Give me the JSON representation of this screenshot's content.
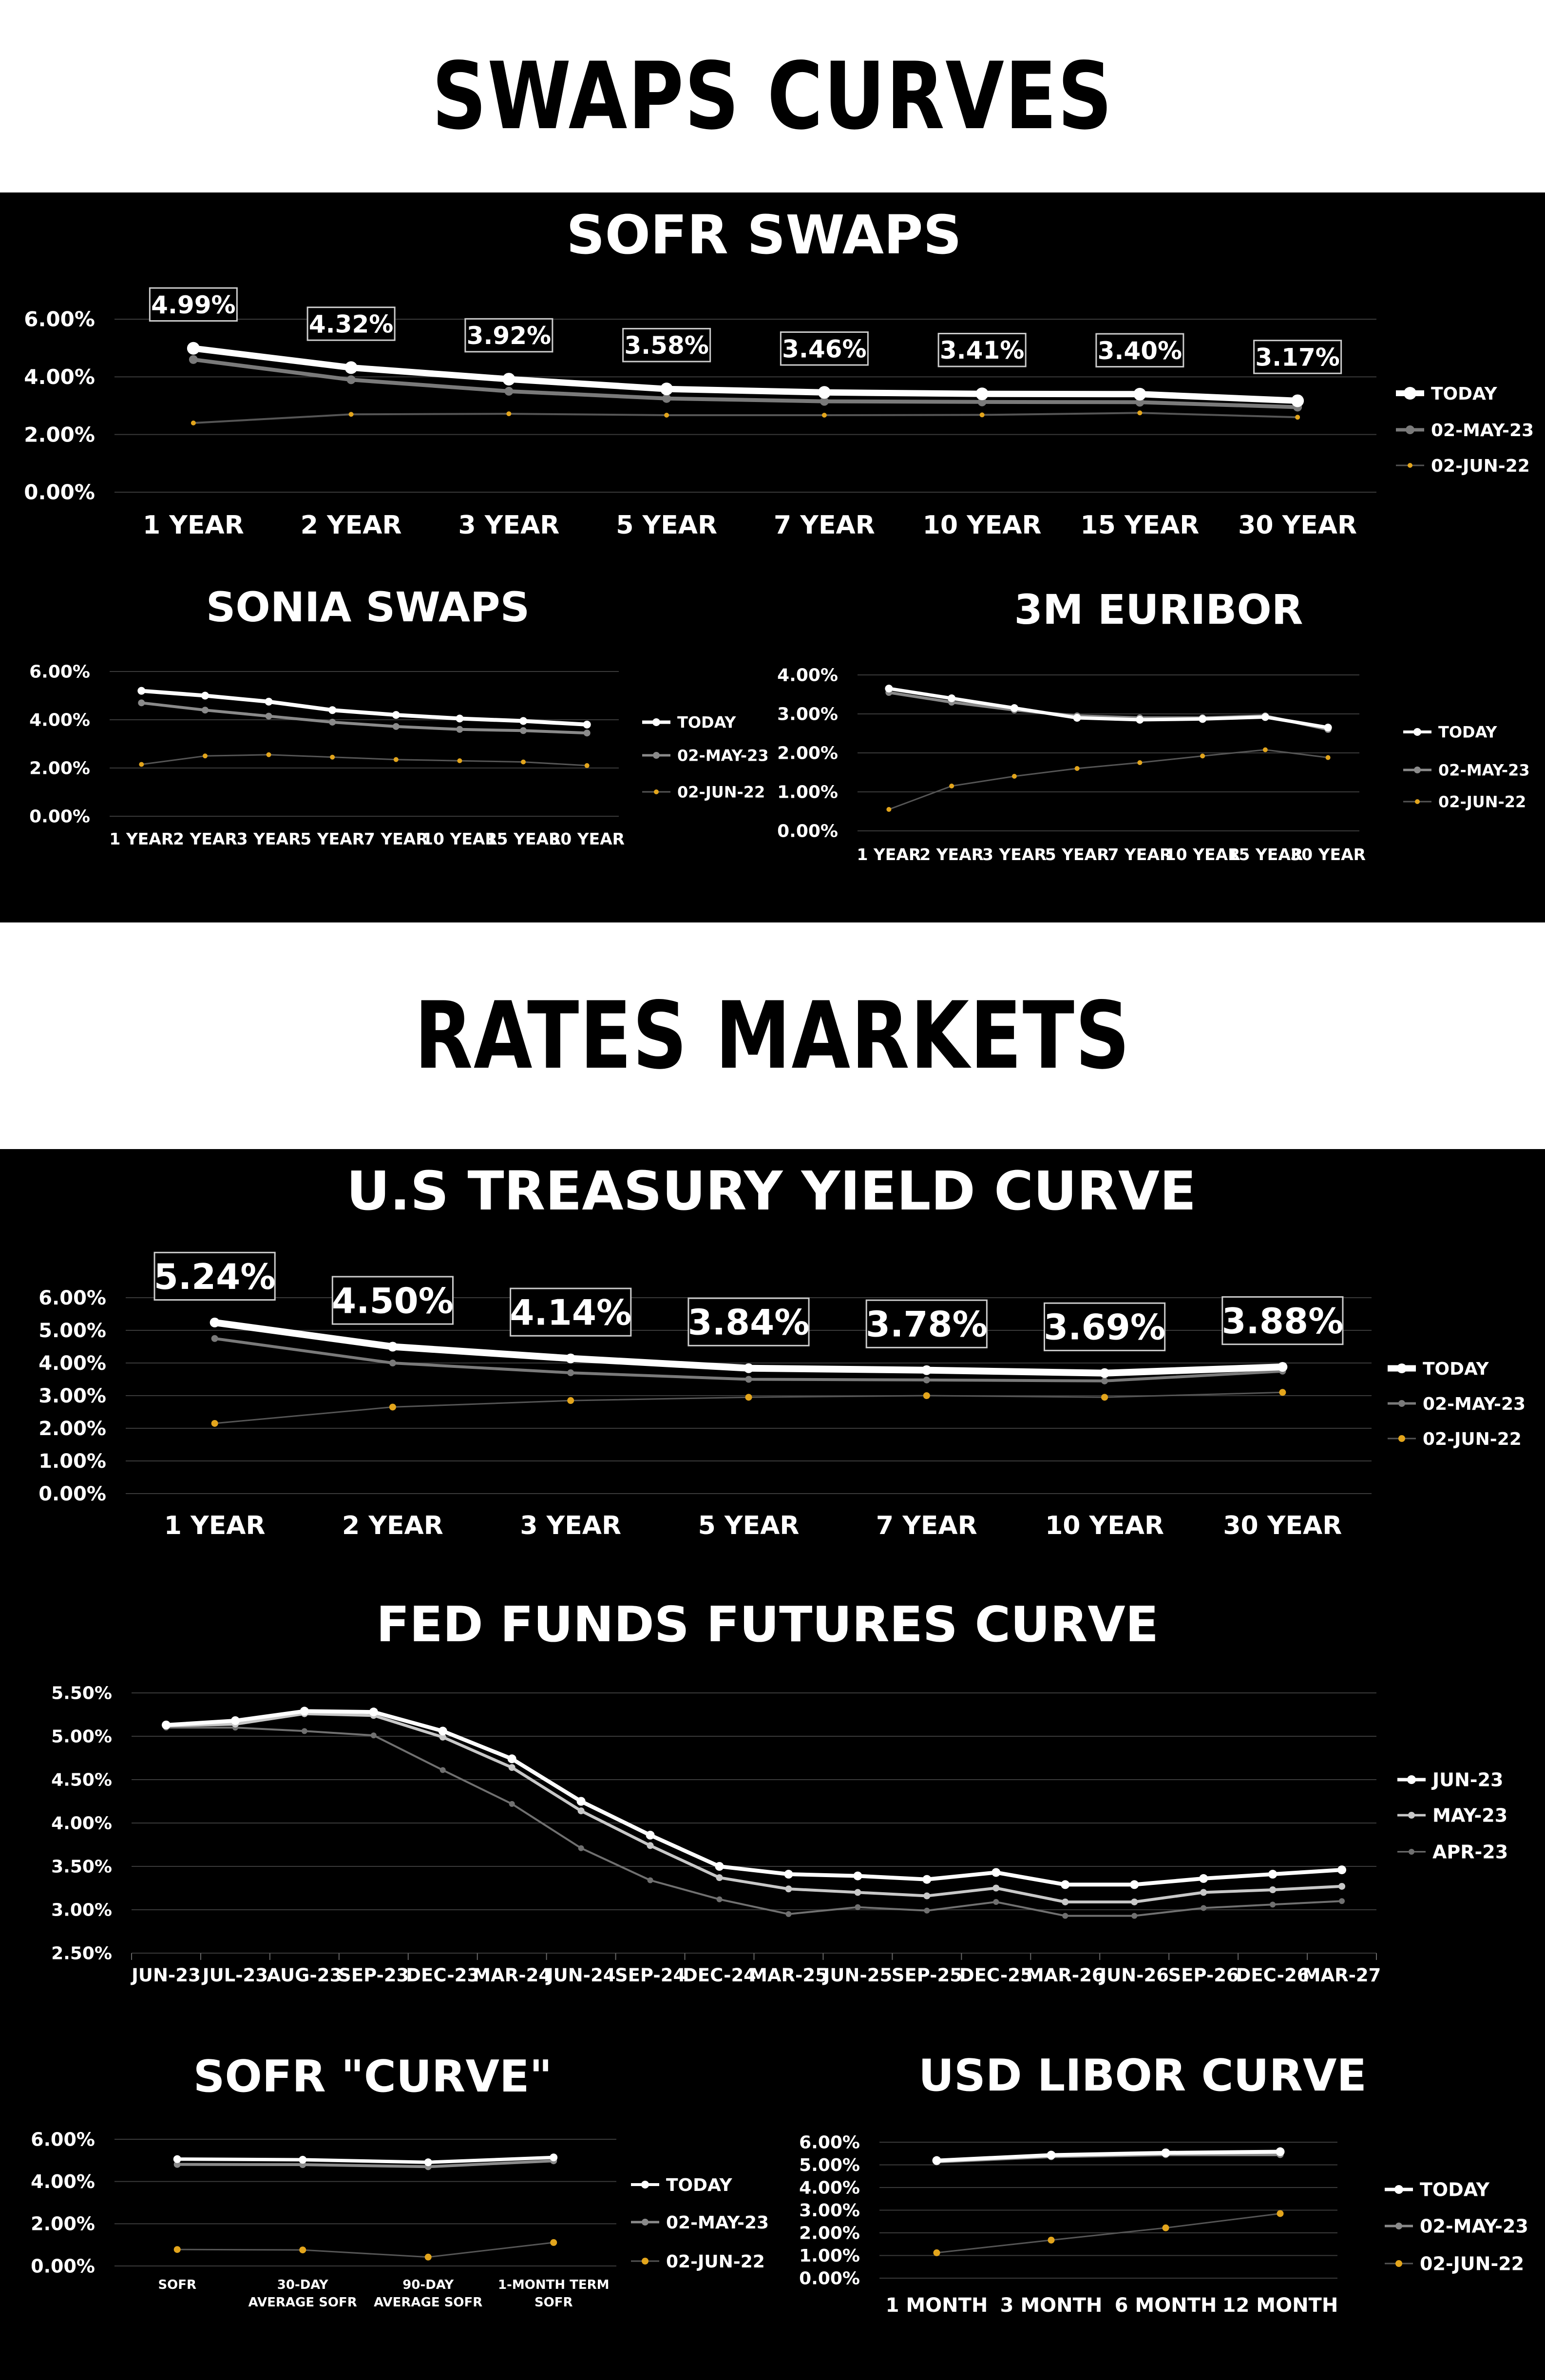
{
  "sections": {
    "swaps_title": "SWAPS CURVES",
    "rates_title": "RATES MARKETS"
  },
  "chart_data": [
    {
      "id": "sofr_swaps",
      "type": "line",
      "title": "SOFR SWAPS",
      "categories": [
        "1 YEAR",
        "2 YEAR",
        "3 YEAR",
        "5 YEAR",
        "7 YEAR",
        "10 YEAR",
        "15 YEAR",
        "30 YEAR"
      ],
      "yticks": [
        "0.00%",
        "2.00%",
        "4.00%",
        "6.00%"
      ],
      "ylim": [
        0,
        6
      ],
      "grid": true,
      "legend": "right",
      "data_labels": [
        "4.99%",
        "4.32%",
        "3.92%",
        "3.58%",
        "3.46%",
        "3.41%",
        "3.40%",
        "3.17%"
      ],
      "series": [
        {
          "name": "TODAY",
          "color": "#ffffff",
          "values": [
            4.99,
            4.32,
            3.92,
            3.58,
            3.46,
            3.41,
            3.4,
            3.17
          ]
        },
        {
          "name": "02-MAY-23",
          "color": "#7a7a7a",
          "values": [
            4.6,
            3.9,
            3.5,
            3.25,
            3.15,
            3.13,
            3.12,
            2.95
          ]
        },
        {
          "name": "02-JUN-22",
          "color": "#555555",
          "marker": "#e3a51c",
          "values": [
            2.4,
            2.7,
            2.72,
            2.67,
            2.67,
            2.68,
            2.75,
            2.6
          ]
        }
      ]
    },
    {
      "id": "sonia_swaps",
      "type": "line",
      "title": "SONIA SWAPS",
      "categories": [
        "1 YEAR",
        "2 YEAR",
        "3 YEAR",
        "5 YEAR",
        "7 YEAR",
        "10 YEAR",
        "15 YEAR",
        "30 YEAR"
      ],
      "yticks": [
        "0.00%",
        "2.00%",
        "4.00%",
        "6.00%"
      ],
      "ylim": [
        0,
        6
      ],
      "grid": true,
      "legend": "right",
      "series": [
        {
          "name": "TODAY",
          "color": "#ffffff",
          "values": [
            5.2,
            5.0,
            4.75,
            4.4,
            4.2,
            4.05,
            3.95,
            3.8
          ]
        },
        {
          "name": "02-MAY-23",
          "color": "#8a8a8a",
          "values": [
            4.7,
            4.4,
            4.15,
            3.9,
            3.72,
            3.6,
            3.55,
            3.45
          ]
        },
        {
          "name": "02-JUN-22",
          "color": "#555555",
          "marker": "#e3a51c",
          "values": [
            2.15,
            2.5,
            2.55,
            2.45,
            2.35,
            2.3,
            2.25,
            2.1
          ]
        }
      ]
    },
    {
      "id": "euribor_3m",
      "type": "line",
      "title": "3M EURIBOR",
      "categories": [
        "1 YEAR",
        "2 YEAR",
        "3 YEAR",
        "5 YEAR",
        "7 YEAR",
        "10 YEAR",
        "15 YEAR",
        "30 YEAR"
      ],
      "yticks": [
        "0.00%",
        "1.00%",
        "2.00%",
        "3.00%",
        "4.00%"
      ],
      "ylim": [
        0,
        4
      ],
      "grid": true,
      "legend": "right",
      "series": [
        {
          "name": "TODAY",
          "color": "#ffffff",
          "values": [
            3.65,
            3.4,
            3.15,
            2.9,
            2.85,
            2.87,
            2.92,
            2.65
          ]
        },
        {
          "name": "02-MAY-23",
          "color": "#8a8a8a",
          "values": [
            3.55,
            3.3,
            3.1,
            2.95,
            2.9,
            2.9,
            2.95,
            2.6
          ]
        },
        {
          "name": "02-JUN-22",
          "color": "#555555",
          "marker": "#e3a51c",
          "values": [
            0.55,
            1.15,
            1.4,
            1.6,
            1.75,
            1.92,
            2.08,
            1.88
          ]
        }
      ]
    },
    {
      "id": "ust_yield",
      "type": "line",
      "title": "U.S TREASURY YIELD CURVE",
      "categories": [
        "1 YEAR",
        "2 YEAR",
        "3 YEAR",
        "5 YEAR",
        "7 YEAR",
        "10 YEAR",
        "30 YEAR"
      ],
      "yticks": [
        "0.00%",
        "1.00%",
        "2.00%",
        "3.00%",
        "4.00%",
        "5.00%",
        "6.00%"
      ],
      "ylim": [
        0,
        6
      ],
      "grid": true,
      "legend": "right",
      "data_labels": [
        "5.24%",
        "4.50%",
        "4.14%",
        "3.84%",
        "3.78%",
        "3.69%",
        "3.88%"
      ],
      "series": [
        {
          "name": "TODAY",
          "color": "#ffffff",
          "values": [
            5.24,
            4.5,
            4.14,
            3.84,
            3.78,
            3.69,
            3.88
          ]
        },
        {
          "name": "02-MAY-23",
          "color": "#7a7a7a",
          "values": [
            4.75,
            4.0,
            3.7,
            3.5,
            3.48,
            3.45,
            3.75
          ]
        },
        {
          "name": "02-JUN-22",
          "color": "#555555",
          "marker": "#e3a51c",
          "values": [
            2.15,
            2.65,
            2.85,
            2.95,
            3.0,
            2.95,
            3.1
          ]
        }
      ]
    },
    {
      "id": "fed_funds",
      "type": "line",
      "title": "FED FUNDS FUTURES CURVE",
      "categories": [
        "JUN-23",
        "JUL-23",
        "AUG-23",
        "SEP-23",
        "DEC-23",
        "MAR-24",
        "JUN-24",
        "SEP-24",
        "DEC-24",
        "MAR-25",
        "JUN-25",
        "SEP-25",
        "DEC-25",
        "MAR-26",
        "JUN-26",
        "SEP-26",
        "DEC-26",
        "MAR-27"
      ],
      "yticks": [
        "2.50%",
        "3.00%",
        "3.50%",
        "4.00%",
        "4.50%",
        "5.00%",
        "5.50%"
      ],
      "ylim": [
        2.5,
        5.5
      ],
      "grid": true,
      "legend": "right",
      "series": [
        {
          "name": "JUN-23",
          "color": "#ffffff",
          "values": [
            5.13,
            5.18,
            5.29,
            5.28,
            5.06,
            4.74,
            4.25,
            3.86,
            3.5,
            3.41,
            3.39,
            3.35,
            3.43,
            3.29,
            3.29,
            3.36,
            3.41,
            3.46
          ]
        },
        {
          "name": "MAY-23",
          "color": "#c8c8c8",
          "values": [
            5.12,
            5.14,
            5.26,
            5.24,
            4.99,
            4.64,
            4.14,
            3.74,
            3.37,
            3.24,
            3.2,
            3.16,
            3.25,
            3.09,
            3.09,
            3.2,
            3.23,
            3.27
          ]
        },
        {
          "name": "APR-23",
          "color": "#707070",
          "values": [
            5.1,
            5.1,
            5.06,
            5.01,
            4.61,
            4.22,
            3.71,
            3.34,
            3.12,
            2.95,
            3.03,
            2.99,
            3.09,
            2.93,
            2.93,
            3.02,
            3.06,
            3.1
          ]
        }
      ]
    },
    {
      "id": "sofr_curve",
      "type": "line",
      "title": "SOFR \"CURVE\"",
      "categories": [
        "SOFR",
        "30-DAY AVERAGE SOFR",
        "90-DAY AVERAGE SOFR",
        "1-MONTH TERM SOFR"
      ],
      "yticks": [
        "0.00%",
        "2.00%",
        "4.00%",
        "6.00%"
      ],
      "ylim": [
        0,
        6
      ],
      "grid": true,
      "legend": "right",
      "series": [
        {
          "name": "TODAY",
          "color": "#ffffff",
          "values": [
            5.06,
            5.03,
            4.91,
            5.14
          ]
        },
        {
          "name": "02-MAY-23",
          "color": "#8a8a8a",
          "values": [
            4.81,
            4.8,
            4.7,
            4.98
          ]
        },
        {
          "name": "02-JUN-22",
          "color": "#555555",
          "marker": "#e3a51c",
          "values": [
            0.78,
            0.76,
            0.42,
            1.11
          ]
        }
      ]
    },
    {
      "id": "usd_libor",
      "type": "line",
      "title": "USD LIBOR CURVE",
      "categories": [
        "1 MONTH",
        "3 MONTH",
        "6 MONTH",
        "12 MONTH"
      ],
      "yticks": [
        "0.00%",
        "1.00%",
        "2.00%",
        "3.00%",
        "4.00%",
        "5.00%",
        "6.00%"
      ],
      "ylim": [
        0,
        6
      ],
      "grid": true,
      "legend": "right",
      "series": [
        {
          "name": "TODAY",
          "color": "#ffffff",
          "values": [
            5.19,
            5.43,
            5.53,
            5.58
          ]
        },
        {
          "name": "02-MAY-23",
          "color": "#8a8a8a",
          "values": [
            5.13,
            5.36,
            5.45,
            5.45
          ]
        },
        {
          "name": "02-JUN-22",
          "color": "#555555",
          "marker": "#e3a51c",
          "values": [
            1.12,
            1.68,
            2.22,
            2.85
          ]
        }
      ]
    }
  ]
}
